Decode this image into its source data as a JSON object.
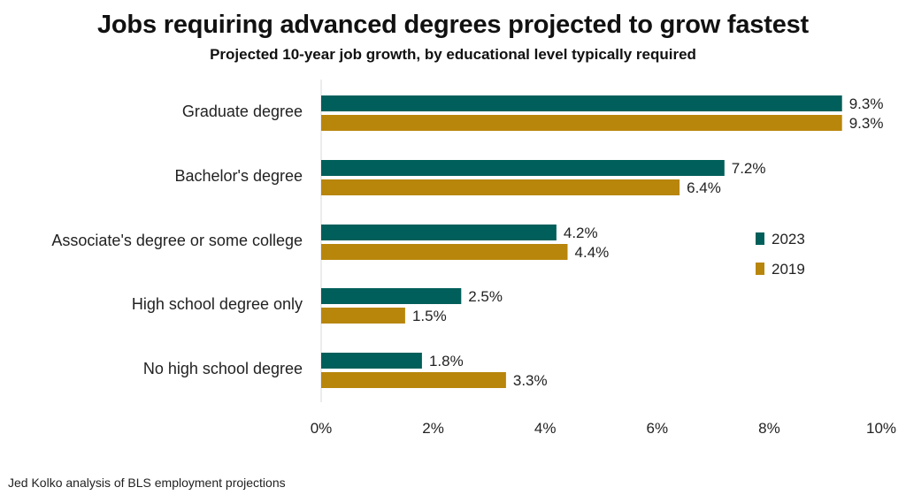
{
  "chart_data": {
    "type": "bar",
    "orientation": "horizontal",
    "title": "Jobs requiring advanced degrees projected to grow fastest",
    "subtitle": "Projected 10-year job growth, by educational level typically required",
    "source": "Jed Kolko analysis of BLS employment projections",
    "categories": [
      "Graduate degree",
      "Bachelor's degree",
      "Associate's degree or some college",
      "High school degree only",
      "No high school degree"
    ],
    "series": [
      {
        "name": "2023",
        "color": "#005f5a",
        "values": [
          9.3,
          7.2,
          4.2,
          2.5,
          1.8
        ],
        "labels": [
          "9.3%",
          "7.2%",
          "4.2%",
          "2.5%",
          "1.8%"
        ]
      },
      {
        "name": "2019",
        "color": "#b8860b",
        "values": [
          9.3,
          6.4,
          4.4,
          1.5,
          3.3
        ],
        "labels": [
          "9.3%",
          "6.4%",
          "4.4%",
          "1.5%",
          "3.3%"
        ]
      }
    ],
    "xlim": [
      0,
      10
    ],
    "xticks": [
      0,
      2,
      4,
      6,
      8,
      10
    ],
    "xtick_labels": [
      "0%",
      "2%",
      "4%",
      "6%",
      "8%",
      "10%"
    ],
    "legend_position": "right",
    "xlabel": "",
    "ylabel": ""
  }
}
